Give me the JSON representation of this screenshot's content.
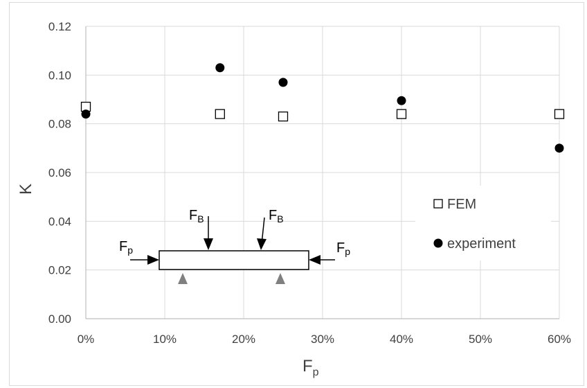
{
  "chart_data": {
    "type": "scatter",
    "xlabel": "F",
    "xlabel_sub": "p",
    "ylabel": "K",
    "xlim": [
      0,
      60
    ],
    "ylim": [
      0,
      0.12
    ],
    "x_ticks": [
      "0%",
      "10%",
      "20%",
      "30%",
      "40%",
      "50%",
      "60%"
    ],
    "y_ticks": [
      "0.00",
      "0.02",
      "0.04",
      "0.06",
      "0.08",
      "0.10",
      "0.12"
    ],
    "grid": true,
    "legend_position": "right",
    "series": [
      {
        "name": "FEM",
        "marker": "open-square",
        "points": [
          {
            "x": 0,
            "y": 0.087
          },
          {
            "x": 17,
            "y": 0.084
          },
          {
            "x": 25,
            "y": 0.083
          },
          {
            "x": 40,
            "y": 0.084
          },
          {
            "x": 60,
            "y": 0.084
          }
        ]
      },
      {
        "name": "experiment",
        "marker": "filled-circle",
        "points": [
          {
            "x": 0,
            "y": 0.084
          },
          {
            "x": 17,
            "y": 0.103
          },
          {
            "x": 25,
            "y": 0.097
          },
          {
            "x": 40,
            "y": 0.0895
          },
          {
            "x": 60,
            "y": 0.07
          }
        ]
      }
    ],
    "inset_labels": {
      "fb_main": "F",
      "fb_sub": "B",
      "fp_main": "F",
      "fp_sub": "p"
    }
  }
}
